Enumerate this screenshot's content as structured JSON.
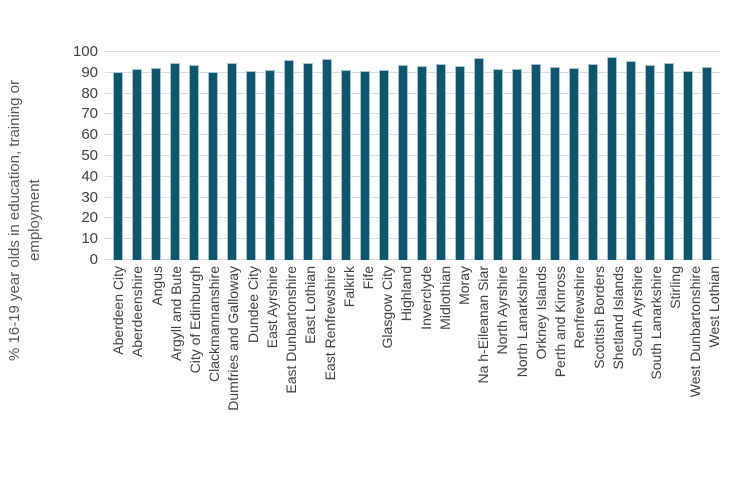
{
  "chart_data": {
    "type": "bar",
    "title": "",
    "xlabel": "",
    "ylabel": "% 16-19 year olds in education, training or employment",
    "ylim": [
      0,
      100
    ],
    "yticks": [
      0,
      10,
      20,
      30,
      40,
      50,
      60,
      70,
      80,
      90,
      100
    ],
    "grid": true,
    "legend": false,
    "categories": [
      "Aberdeen City",
      "Aberdeenshire",
      "Angus",
      "Argyll and Bute",
      "City of Edinburgh",
      "Clackmannanshire",
      "Dumfries and Galloway",
      "Dundee City",
      "East Ayrshire",
      "East Dunbartonshire",
      "East Lothian",
      "East Renfrewshire",
      "Falkirk",
      "Fife",
      "Glasgow City",
      "Highland",
      "Inverclyde",
      "Midlothian",
      "Moray",
      "Na h-Eileanan Siar",
      "North Ayrshire",
      "North Lanarkshire",
      "Orkney Islands",
      "Perth and Kinross",
      "Renfrewshire",
      "Scottish Borders",
      "Shetland Islands",
      "South Ayrshire",
      "South Lanarkshire",
      "Stirling",
      "West Dunbartonshire",
      "West Lothian"
    ],
    "values": [
      90.3,
      92.0,
      92.1,
      94.6,
      93.6,
      90.2,
      94.5,
      90.8,
      91.5,
      96.1,
      94.7,
      96.8,
      91.5,
      90.8,
      91.3,
      93.8,
      93.4,
      94.2,
      93.3,
      97.0,
      91.8,
      92.0,
      94.1,
      93.0,
      92.2,
      94.3,
      97.8,
      95.5,
      93.7,
      94.9,
      90.9,
      92.7
    ]
  },
  "colors": {
    "background": "#FFFFFF",
    "bar": "#0E566E",
    "bar_edge": "#A6C4D0",
    "gridline": "#D9D9D9",
    "axis_tick_text": "#404040",
    "axis_title_text": "#595959"
  }
}
